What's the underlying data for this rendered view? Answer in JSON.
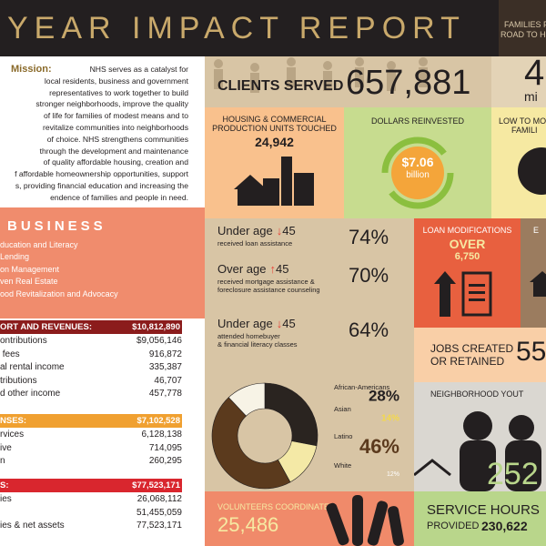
{
  "header": {
    "title": "YEAR IMPACT REPORT",
    "side_lines": [
      "FAMILIES P",
      "ROAD TO HO"
    ]
  },
  "mission": {
    "heading": "Mission:",
    "lines": [
      "NHS serves as a catalyst for",
      "local residents, business and government",
      "representatives to work together to build",
      "stronger neighborhoods, improve the quality",
      "of life for families of modest means and to",
      "revitalize communities into neighborhoods",
      "of choice.  NHS strengthens communities",
      "through the development and maintenance",
      "of quality affordable housing, creation and",
      "f affordable homeownership opportunities, support",
      "s, providing financial education and increasing the",
      "endence of families and people in need."
    ]
  },
  "business": {
    "heading": "BUSINESS",
    "items": [
      "ducation and Literacy",
      "Lending",
      "on Management",
      "ven Real Estate",
      "ood Revitalization and Advocacy"
    ]
  },
  "financials": [
    {
      "header": [
        "ORT AND REVENUES:",
        "$10,812,890"
      ],
      "color": "#8b1c1c",
      "rows": [
        {
          "label": "ontributions",
          "value": "$9,056,146"
        },
        {
          "label": " fees",
          "value": "916,872"
        },
        {
          "label": "al rental income",
          "value": "335,387"
        },
        {
          "label": "tributions",
          "value": "46,707"
        },
        {
          "label": "d other income",
          "value": "457,778"
        }
      ]
    },
    {
      "header": [
        "NSES:",
        "$7,102,528"
      ],
      "color": "#f0a030",
      "rows": [
        {
          "label": "rvices",
          "value": "6,128,138"
        },
        {
          "label": "ive",
          "value": "714,095"
        },
        {
          "label": "n",
          "value": "260,295"
        }
      ]
    },
    {
      "header": [
        "S:",
        "$77,523,171"
      ],
      "color": "#d9262e",
      "rows": [
        {
          "label": "ies",
          "value": "26,068,112"
        },
        {
          "value": "51,455,059"
        },
        {
          "label": "ies & net assets",
          "value": "77,523,171"
        }
      ]
    }
  ],
  "clients": {
    "label": "CLIENTS SERVED",
    "value": "657,881"
  },
  "side_stat": {
    "value": "4",
    "unit": "mi"
  },
  "housing": {
    "lines": [
      "HOUSING & COMMERCIAL",
      "PRODUCTION UNITS TOUCHED"
    ],
    "value": "24,942"
  },
  "dollars": {
    "label": "DOLLARS REINVESTED",
    "value": "$7.06",
    "unit": "billion"
  },
  "low_mod": {
    "lines": [
      "LOW TO MO",
      "FAMILI"
    ]
  },
  "ages": [
    {
      "prefix": "Under age",
      "arrow": "↓",
      "age": "45",
      "notes": [
        "received loan assistance"
      ],
      "percent": "74%"
    },
    {
      "prefix": "Over age",
      "arrow": "↑",
      "age": "45",
      "notes": [
        "received mortgage assistance &",
        "foreclosure assistance counseling"
      ],
      "percent": "70%"
    },
    {
      "prefix": "Under age",
      "arrow": "↓",
      "age": "45",
      "notes": [
        "attended homebuyer",
        "& financial literacy classes"
      ],
      "percent": "64%"
    }
  ],
  "loan": {
    "label": "LOAN MODIFICATIONS",
    "over": "OVER",
    "value": "6,750"
  },
  "side_e": "E",
  "jobs": {
    "lines": [
      "JOBS CREATED",
      "OR RETAINED"
    ],
    "value": "55"
  },
  "demographics": {
    "type": "donut",
    "segments": [
      {
        "name": "African-Americans",
        "value": 28,
        "label": "28%",
        "color": "#2a2420"
      },
      {
        "name": "Asian",
        "value": 14,
        "label": "14%",
        "color": "#f4e9a6"
      },
      {
        "name": "Latino",
        "value": 46,
        "label": "46%",
        "color": "#5b3a1d"
      },
      {
        "name": "White",
        "value": 12,
        "label": "12%",
        "color": "#f7f3e6"
      }
    ]
  },
  "youth": {
    "label": "NEIGHBORHOOD YOUT",
    "value": "252"
  },
  "volunteers": {
    "label": "VOLUNTEERS COORDINATED",
    "value": "25,486"
  },
  "service": {
    "label": "SERVICE HOURS",
    "sub": "PROVIDED",
    "value": "230,622"
  }
}
